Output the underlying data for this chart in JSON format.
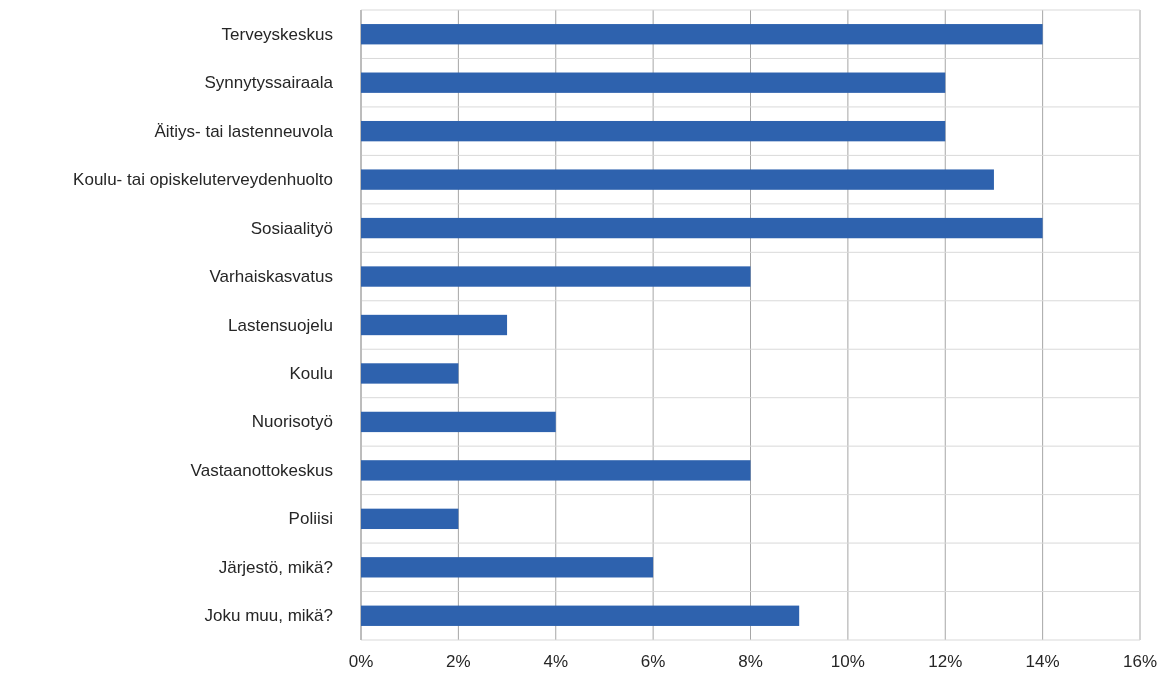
{
  "chart_data": {
    "type": "bar",
    "orientation": "horizontal",
    "categories": [
      "Terveyskeskus",
      "Synnytyssairaala",
      "Äitiys- tai lastenneuvola",
      "Koulu- tai opiskeluterveydenhuolto",
      "Sosiaalityö",
      "Varhaiskasvatus",
      "Lastensuojelu",
      "Koulu",
      "Nuorisotyö",
      "Vastaanottokeskus",
      "Poliisi",
      "Järjestö, mikä?",
      "Joku muu, mikä?"
    ],
    "values": [
      14,
      12,
      12,
      13,
      14,
      8,
      3,
      2,
      4,
      8,
      2,
      6,
      9
    ],
    "color": "#2e62ae",
    "xlim": [
      0,
      16
    ],
    "xticks": [
      {
        "value": 0,
        "label": "0%"
      },
      {
        "value": 2,
        "label": "2%"
      },
      {
        "value": 4,
        "label": "4%"
      },
      {
        "value": 6,
        "label": "6%"
      },
      {
        "value": 8,
        "label": "8%"
      },
      {
        "value": 10,
        "label": "10%"
      },
      {
        "value": 12,
        "label": "12%"
      },
      {
        "value": 14,
        "label": "14%"
      },
      {
        "value": 16,
        "label": "16%"
      }
    ],
    "grid": true
  }
}
